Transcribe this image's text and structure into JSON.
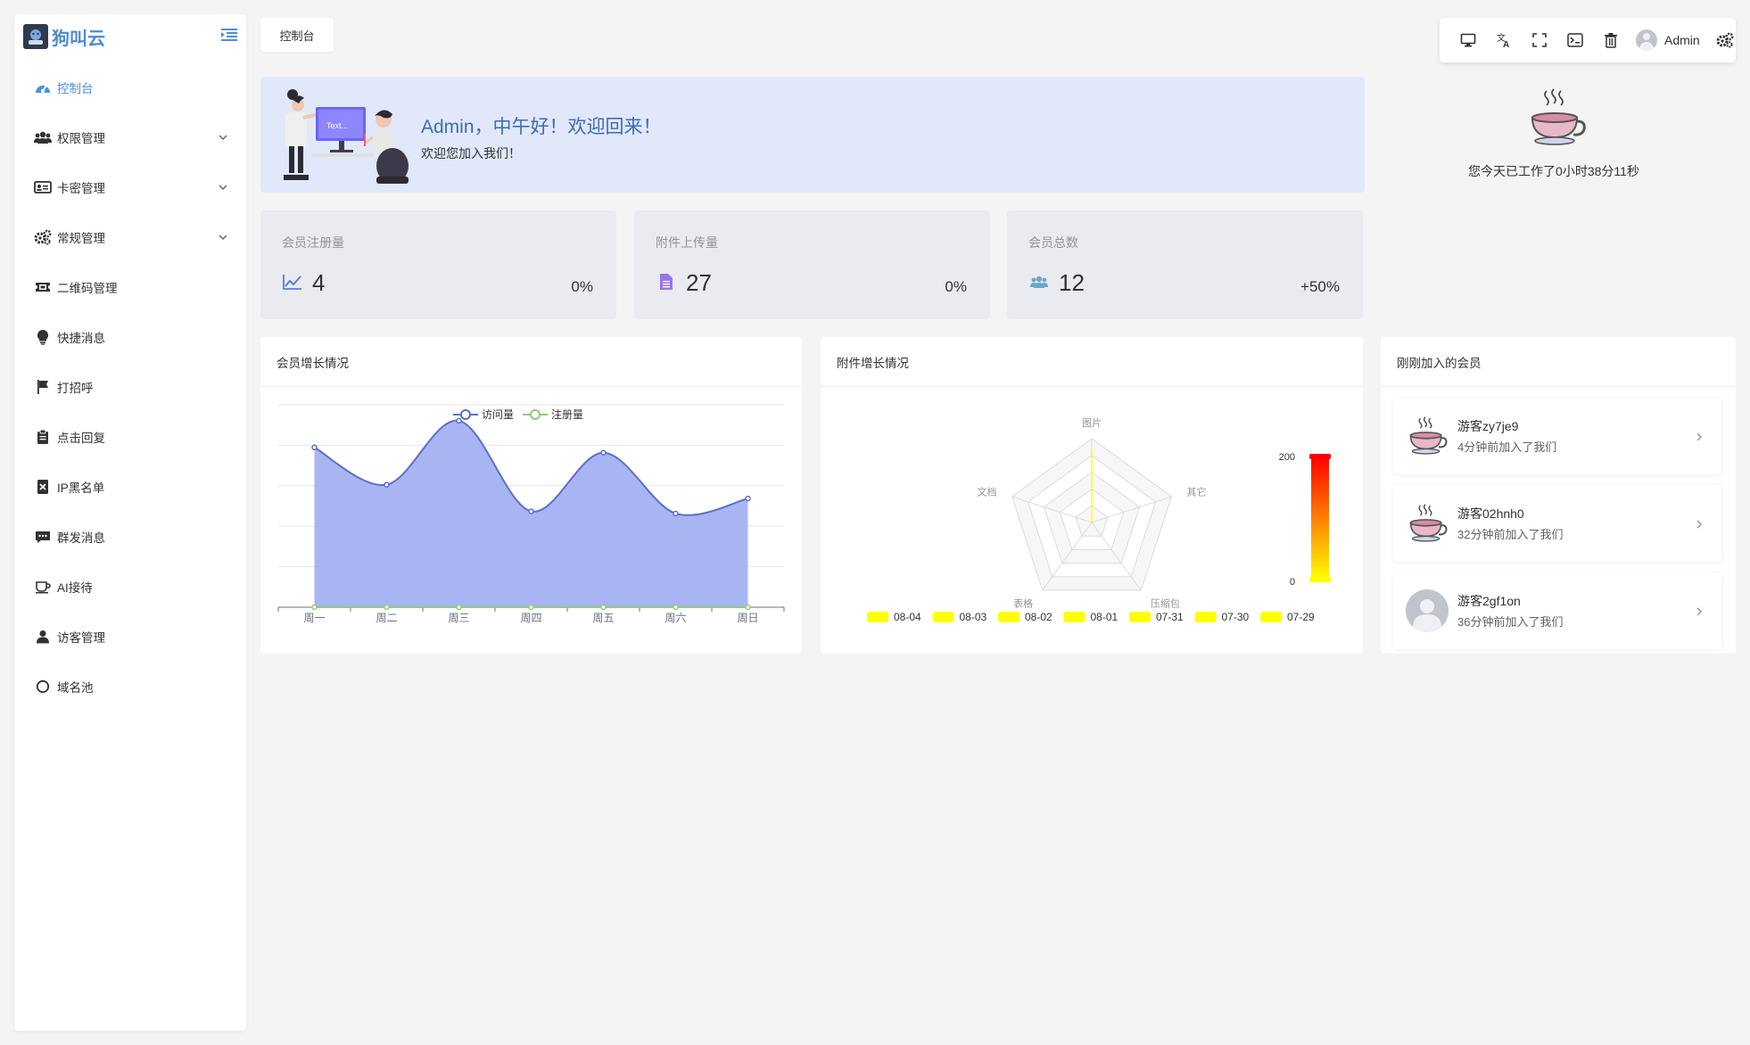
{
  "brand": {
    "name": "狗叫云"
  },
  "sidebar": {
    "items": [
      {
        "label": "控制台",
        "icon": "dashboard-icon",
        "active": true,
        "has_children": false
      },
      {
        "label": "权限管理",
        "icon": "users-icon",
        "active": false,
        "has_children": true
      },
      {
        "label": "卡密管理",
        "icon": "id-card-icon",
        "active": false,
        "has_children": true
      },
      {
        "label": "常规管理",
        "icon": "cogs-icon",
        "active": false,
        "has_children": true
      },
      {
        "label": "二维码管理",
        "icon": "ticket-icon",
        "active": false,
        "has_children": false
      },
      {
        "label": "快捷消息",
        "icon": "lightbulb-icon",
        "active": false,
        "has_children": false
      },
      {
        "label": "打招呼",
        "icon": "flag-icon",
        "active": false,
        "has_children": false
      },
      {
        "label": "点击回复",
        "icon": "clipboard-icon",
        "active": false,
        "has_children": false
      },
      {
        "label": "IP黑名单",
        "icon": "blocked-file-icon",
        "active": false,
        "has_children": false
      },
      {
        "label": "群发消息",
        "icon": "message-icon",
        "active": false,
        "has_children": false
      },
      {
        "label": "AI接待",
        "icon": "coffee-icon",
        "active": false,
        "has_children": false
      },
      {
        "label": "访客管理",
        "icon": "user-icon",
        "active": false,
        "has_children": false
      },
      {
        "label": "域名池",
        "icon": "circle-icon",
        "active": false,
        "has_children": false
      }
    ]
  },
  "tabs": {
    "current": "控制台"
  },
  "toolbar": {
    "user_name": "Admin"
  },
  "welcome": {
    "title": "Admin，中午好！欢迎回来！",
    "subtitle": "欢迎您加入我们！"
  },
  "worktime": {
    "text": "您今天已工作了0小时38分11秒"
  },
  "stats": [
    {
      "title": "会员注册量",
      "value": "4",
      "change": "0%",
      "icon": "line-chart-icon",
      "color": "#5b7be0"
    },
    {
      "title": "附件上传量",
      "value": "27",
      "change": "0%",
      "icon": "file-icon",
      "color": "#9b73e8"
    },
    {
      "title": "会员总数",
      "value": "12",
      "change": "+50%",
      "icon": "users-icon",
      "color": "#6aa6c9"
    }
  ],
  "member_chart": {
    "title": "会员增长情况",
    "chart_data": {
      "type": "area",
      "categories": [
        "周一",
        "周二",
        "周三",
        "周四",
        "周五",
        "周六",
        "周日"
      ],
      "series": [
        {
          "name": "访问量",
          "values": [
            150,
            115,
            175,
            90,
            145,
            88,
            102
          ],
          "color": "#5b6fcf",
          "fill": "#a4b0f2"
        },
        {
          "name": "注册量",
          "values": [
            0,
            0,
            0,
            0,
            0,
            0,
            0
          ],
          "color": "#91cc75"
        }
      ],
      "ylim": [
        0,
        190
      ]
    }
  },
  "attachment_chart": {
    "title": "附件增长情况",
    "chart_data": {
      "type": "radar",
      "indicators": [
        "图片",
        "其它",
        "压缩包",
        "表格",
        "文档"
      ],
      "series": [
        {
          "name": "08-04",
          "values": [
            175,
            0,
            0,
            0,
            0
          ]
        },
        {
          "name": "08-03",
          "values": [
            0,
            0,
            0,
            0,
            0
          ]
        },
        {
          "name": "08-02",
          "values": [
            0,
            0,
            0,
            0,
            0
          ]
        },
        {
          "name": "08-01",
          "values": [
            0,
            0,
            0,
            0,
            0
          ]
        },
        {
          "name": "07-31",
          "values": [
            0,
            0,
            0,
            0,
            0
          ]
        },
        {
          "name": "07-30",
          "values": [
            0,
            0,
            0,
            0,
            0
          ]
        },
        {
          "name": "07-29",
          "values": [
            0,
            0,
            0,
            0,
            0
          ]
        }
      ],
      "visual_map": {
        "min": 0,
        "max": 200,
        "max_label": "200",
        "min_label": "0"
      },
      "series_color": "#ffff00"
    }
  },
  "new_members": {
    "title": "刚刚加入的会员",
    "items": [
      {
        "name": "游客zy7je9",
        "time": "4分钟前加入了我们",
        "avatar": "teacup-icon"
      },
      {
        "name": "游客02hnh0",
        "time": "32分钟前加入了我们",
        "avatar": "teacup-icon"
      },
      {
        "name": "游客2gf1on",
        "time": "36分钟前加入了我们",
        "avatar": "default-avatar-icon"
      }
    ]
  }
}
